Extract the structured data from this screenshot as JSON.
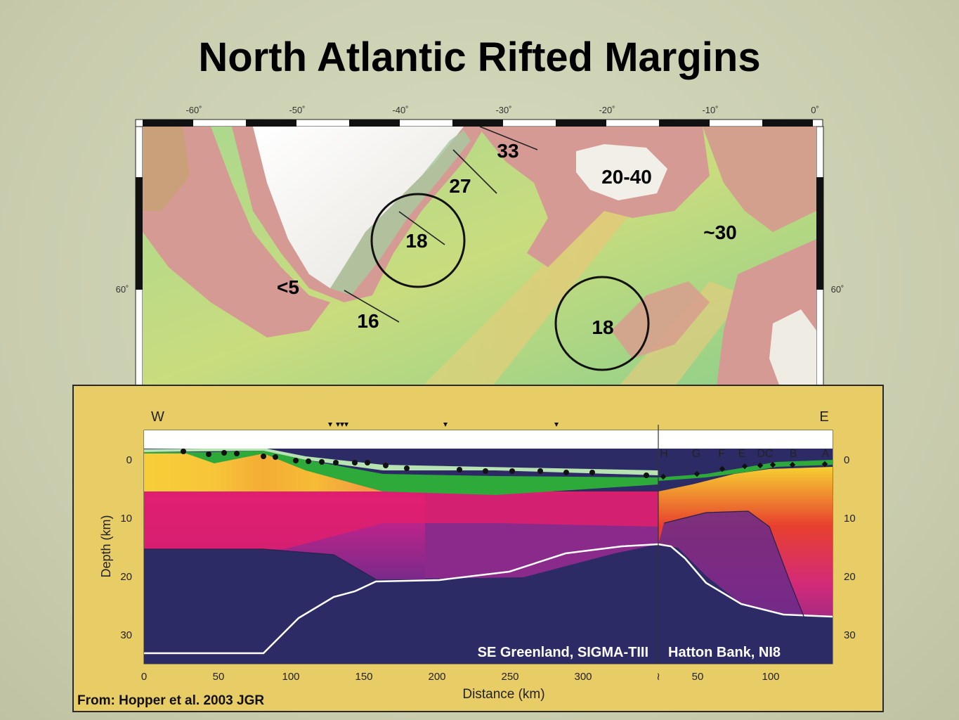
{
  "slide": {
    "title": "North Atlantic Rifted Margins",
    "citation": "From: Hopper et al. 2003 JGR"
  },
  "map": {
    "longitude_ticks": [
      "-60˚",
      "-50˚",
      "-40˚",
      "-30˚",
      "-20˚",
      "-10˚",
      "0˚"
    ],
    "latitude_ticks": [
      "60˚",
      "60˚"
    ],
    "labels": {
      "l33": "33",
      "l2040": "20-40",
      "l27": "27",
      "l18a": "18",
      "l30": "~30",
      "l5": "<5",
      "l16": "16",
      "l18b": "18"
    },
    "colors": {
      "land": "#f2efe8",
      "shelf": "#d49a93",
      "ocean": "#9fd28a"
    }
  },
  "section": {
    "west": "W",
    "east": "E",
    "station_letters": [
      "H",
      "G",
      "F",
      "E",
      "DC",
      "B",
      "A"
    ],
    "depth_ticks": [
      "0",
      "10",
      "20",
      "30"
    ],
    "depth_label": "Depth (km)",
    "distance_ticks_left": [
      "0",
      "50",
      "100",
      "150",
      "200",
      "250",
      "300"
    ],
    "distance_ticks_right": [
      "50",
      "100"
    ],
    "break_mark": "≀",
    "distance_label": "Distance (km)",
    "left_profile": "SE Greenland, SIGMA-TIII",
    "right_profile": "Hatton Bank, NI8"
  }
}
